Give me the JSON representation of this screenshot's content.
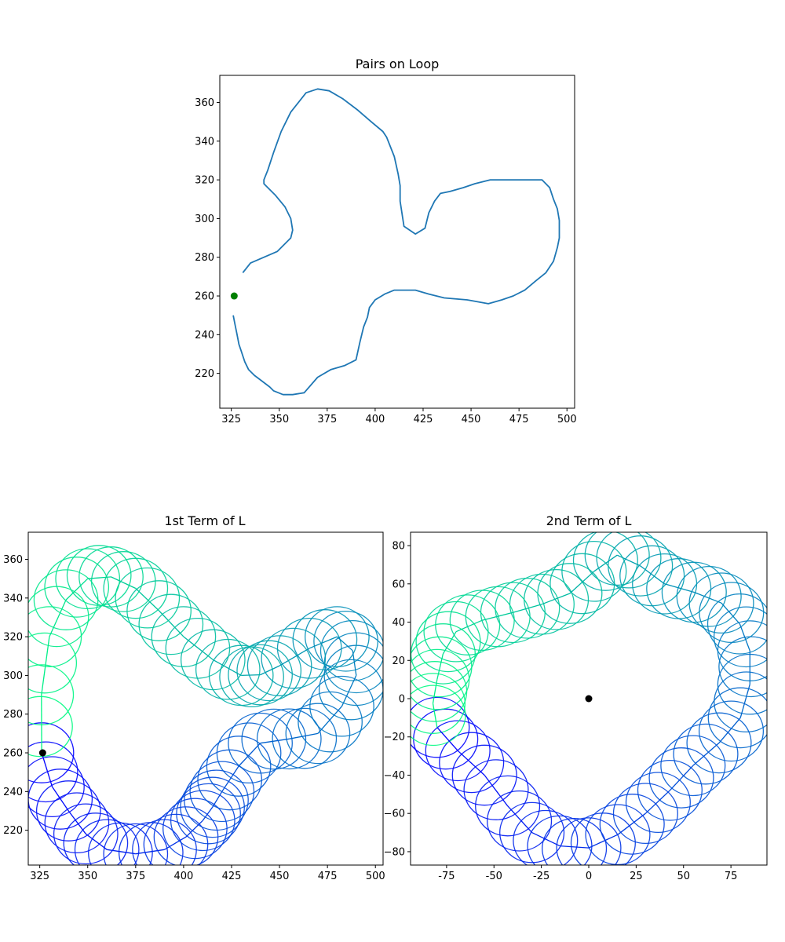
{
  "chart_data": [
    {
      "id": "loop",
      "type": "line",
      "title": "Pairs on Loop",
      "xlabel": "",
      "ylabel": "",
      "xlim": [
        319,
        504
      ],
      "ylim": [
        202,
        374
      ],
      "xticks": [
        325,
        350,
        375,
        400,
        425,
        450,
        475,
        500
      ],
      "yticks": [
        220,
        240,
        260,
        280,
        300,
        320,
        340,
        360
      ],
      "grid": false,
      "series": [
        {
          "color": "#1f77b4",
          "x": [
            331,
            335,
            349,
            356,
            357,
            356,
            353,
            348,
            343,
            342,
            342,
            344,
            347,
            351,
            356,
            364,
            370,
            376,
            383,
            391,
            398,
            404,
            406,
            410,
            412,
            413,
            413,
            415,
            421,
            426,
            428,
            431,
            434,
            439,
            446,
            452,
            460,
            470,
            480,
            487,
            491,
            493,
            495,
            496,
            496,
            495,
            493,
            489,
            484,
            478,
            472,
            466,
            459,
            448,
            436,
            428,
            421,
            415,
            410,
            405,
            400,
            397,
            396,
            394,
            392,
            390,
            384,
            377,
            370,
            363,
            357,
            352,
            347,
            345,
            341,
            337,
            334,
            332,
            330,
            329,
            328,
            327,
            326
          ],
          "y": [
            272,
            277,
            283,
            290,
            294,
            300,
            306,
            312,
            317,
            318,
            320,
            325,
            334,
            345,
            355,
            365,
            367,
            366,
            362,
            356,
            350,
            345,
            342,
            332,
            323,
            317,
            309,
            296,
            292,
            295,
            303,
            309,
            313,
            314,
            316,
            318,
            320,
            320,
            320,
            320,
            316,
            310,
            305,
            299,
            290,
            285,
            278,
            272,
            268,
            263,
            260,
            258,
            256,
            258,
            259,
            261,
            263,
            263,
            263,
            261,
            258,
            254,
            249,
            244,
            236,
            227,
            224,
            222,
            218,
            210,
            209,
            209,
            211,
            213,
            216,
            219,
            222,
            226,
            232,
            235,
            240,
            245,
            250
          ],
          "closed": false
        }
      ],
      "markers": [
        {
          "x": 326.5,
          "y": 260,
          "color": "#008000"
        }
      ]
    },
    {
      "id": "term1",
      "type": "line",
      "title": "1st Term of L",
      "xlabel": "",
      "ylabel": "",
      "xlim": [
        319,
        504
      ],
      "ylim": [
        202,
        374
      ],
      "xticks": [
        325,
        350,
        375,
        400,
        425,
        450,
        475,
        500
      ],
      "yticks": [
        220,
        240,
        260,
        280,
        300,
        320,
        340,
        360
      ],
      "grid": false,
      "series": [
        {
          "name": "",
          "color_start": "#0000ff",
          "color_end": "#00ff80",
          "x": [
            326,
            340,
            360,
            390,
            410,
            420,
            440,
            470,
            490,
            480,
            450,
            430,
            400,
            375,
            350,
            330
          ],
          "y": [
            260,
            230,
            210,
            210,
            225,
            240,
            265,
            270,
            300,
            320,
            305,
            300,
            320,
            345,
            350,
            320
          ]
        }
      ],
      "markers": [
        {
          "x": 326.5,
          "y": 260,
          "color": "#000000"
        }
      ]
    },
    {
      "id": "term2",
      "type": "line",
      "title": "2nd Term of L",
      "xlabel": "",
      "ylabel": "",
      "xlim": [
        -94,
        94
      ],
      "ylim": [
        -87,
        87
      ],
      "xticks": [
        -75,
        -50,
        -25,
        0,
        25,
        50,
        75
      ],
      "yticks": [
        -80,
        -60,
        -40,
        -20,
        0,
        20,
        40,
        60,
        80
      ],
      "grid": false,
      "series": [
        {
          "name": "",
          "color_start": "#0000ff",
          "color_end": "#00ff80",
          "x": [
            -80,
            -55,
            -30,
            0,
            30,
            55,
            80,
            85,
            70,
            40,
            15,
            -10,
            -40,
            -70,
            -80
          ],
          "y": [
            -15,
            -40,
            -70,
            -78,
            -60,
            -35,
            -10,
            25,
            50,
            60,
            75,
            55,
            45,
            35,
            10
          ]
        }
      ],
      "markers": [
        {
          "x": 0,
          "y": 0,
          "color": "#000000"
        }
      ]
    }
  ]
}
